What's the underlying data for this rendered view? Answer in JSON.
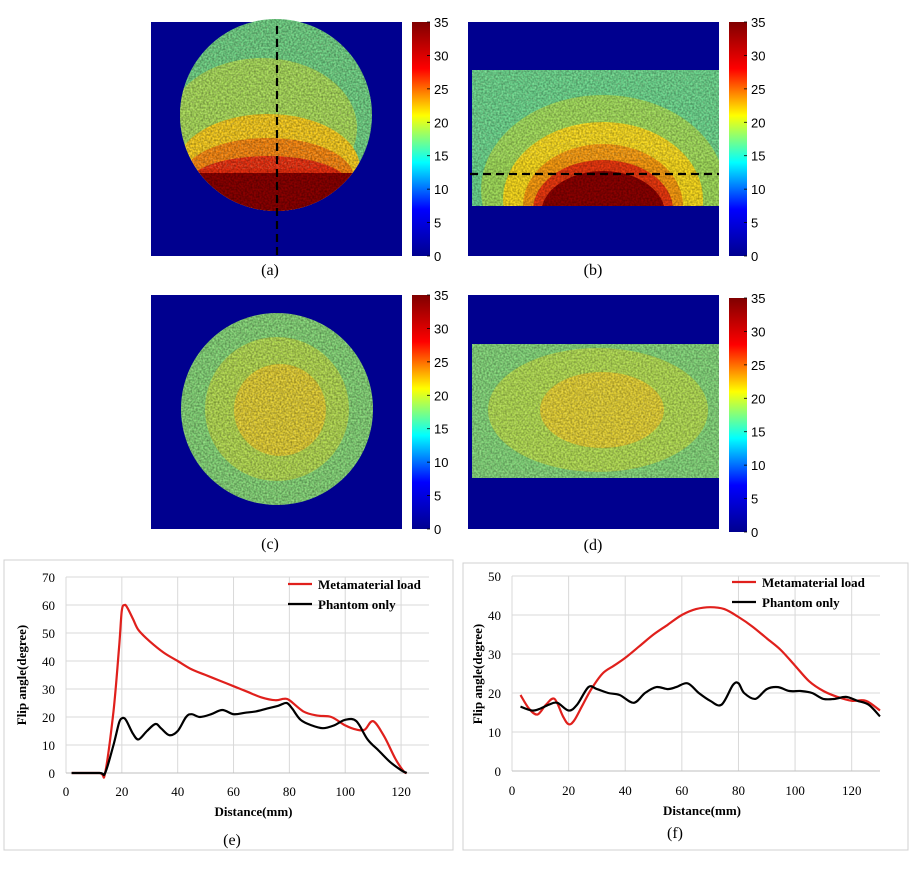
{
  "colors": {
    "jet": [
      "#00008f",
      "#0000ff",
      "#00ffff",
      "#ffff00",
      "#ff0000",
      "#800000"
    ],
    "background": "#00008f",
    "metamaterial": "#e0201c",
    "phantom": "#000000",
    "grid": "#d9d9d9"
  },
  "maps": [
    {
      "id": "a",
      "label": "(a)",
      "shape": "circle",
      "pattern": "bottom-hot",
      "dashed": "vertical",
      "colorbar": {
        "min": 0,
        "max": 35,
        "ticks": [
          "35",
          "30",
          "25",
          "20",
          "15",
          "10",
          "5",
          "0"
        ]
      }
    },
    {
      "id": "b",
      "label": "(b)",
      "shape": "rectangle",
      "pattern": "bottom-hot",
      "dashed": "horizontal",
      "colorbar": {
        "min": 0,
        "max": 35,
        "ticks": [
          "35",
          "30",
          "25",
          "20",
          "15",
          "10",
          "5",
          "0"
        ]
      }
    },
    {
      "id": "c",
      "label": "(c)",
      "shape": "circle",
      "pattern": "uniform",
      "dashed": "none",
      "colorbar": {
        "min": 0,
        "max": 35,
        "ticks": [
          "35",
          "30",
          "25",
          "20",
          "15",
          "10",
          "5",
          "0"
        ]
      }
    },
    {
      "id": "d",
      "label": "(d)",
      "shape": "rectangle",
      "pattern": "uniform",
      "dashed": "none",
      "colorbar": {
        "min": 0,
        "max": 35,
        "ticks": [
          "35",
          "30",
          "25",
          "20",
          "15",
          "10",
          "5",
          "0"
        ]
      }
    }
  ],
  "chart_data": [
    {
      "id": "e",
      "type": "line",
      "label": "(e)",
      "xlabel": "Distance(mm)",
      "ylabel": "Flip angle(degree)",
      "xlim": [
        0,
        130
      ],
      "ylim": [
        0,
        70
      ],
      "xticks": [
        0,
        20,
        40,
        60,
        80,
        100,
        120
      ],
      "yticks": [
        0,
        10,
        20,
        30,
        40,
        50,
        60,
        70
      ],
      "legend_position": "top-right",
      "series": [
        {
          "name": "Metamaterial load",
          "color": "#e0201c",
          "x": [
            2,
            12,
            14,
            17,
            19,
            20,
            21,
            22,
            24,
            26,
            30,
            35,
            40,
            45,
            50,
            55,
            60,
            65,
            70,
            75,
            78,
            80,
            85,
            90,
            95,
            100,
            104,
            107,
            110,
            114,
            118,
            121,
            122
          ],
          "y": [
            0,
            0,
            0,
            22,
            45,
            58,
            60,
            59,
            55,
            51,
            47,
            43,
            40,
            37,
            35,
            33,
            31,
            29,
            27,
            26,
            26.5,
            26,
            22,
            20.5,
            20,
            17,
            15.5,
            15.5,
            18.5,
            13,
            5,
            0.5,
            0
          ]
        },
        {
          "name": "Phantom only",
          "color": "#000000",
          "x": [
            2,
            12,
            14,
            17,
            19,
            20,
            21,
            22,
            24,
            26,
            29,
            32,
            34,
            37,
            40,
            43,
            45,
            48,
            52,
            56,
            60,
            64,
            68,
            72,
            76,
            79,
            81,
            84,
            88,
            92,
            96,
            100,
            104,
            108,
            112,
            116,
            120,
            122
          ],
          "y": [
            0,
            0,
            0,
            10,
            18,
            19.5,
            19.5,
            18,
            14,
            12,
            15,
            17.5,
            16,
            13.5,
            15,
            20,
            21,
            20,
            21,
            22.5,
            21,
            21.5,
            22,
            23,
            24,
            25,
            23,
            19,
            17,
            16,
            17,
            19,
            18.5,
            12,
            8,
            4,
            1,
            0
          ]
        }
      ]
    },
    {
      "id": "f",
      "type": "line",
      "label": "(f)",
      "xlabel": "Distance(mm)",
      "ylabel": "Flip angle(degree)",
      "xlim": [
        0,
        130
      ],
      "ylim": [
        0,
        50
      ],
      "xticks": [
        0,
        20,
        40,
        60,
        80,
        100,
        120
      ],
      "yticks": [
        0,
        10,
        20,
        30,
        40,
        50
      ],
      "legend_position": "top-right",
      "series": [
        {
          "name": "Metamaterial load",
          "color": "#e0201c",
          "x": [
            3,
            6,
            9,
            12,
            15,
            18,
            20,
            22,
            25,
            28,
            32,
            36,
            40,
            45,
            50,
            55,
            60,
            65,
            70,
            75,
            80,
            85,
            90,
            95,
            100,
            105,
            110,
            115,
            120,
            125,
            130
          ],
          "y": [
            19.5,
            16,
            14.5,
            17,
            18.5,
            14,
            12,
            13,
            17,
            21,
            25,
            27,
            29,
            32,
            35,
            37.5,
            40,
            41.5,
            42,
            41.5,
            39.5,
            37,
            34,
            31,
            27,
            23,
            20.5,
            19,
            18,
            18,
            15.5
          ]
        },
        {
          "name": "Phantom only",
          "color": "#000000",
          "x": [
            3,
            7,
            10,
            13,
            16,
            20,
            23,
            27,
            30,
            34,
            38,
            43,
            47,
            51,
            55,
            58,
            62,
            66,
            70,
            74,
            78,
            80,
            82,
            86,
            90,
            94,
            98,
            102,
            106,
            110,
            114,
            118,
            122,
            126,
            130
          ],
          "y": [
            16.5,
            15.5,
            16,
            17,
            17.5,
            15.5,
            17,
            21.5,
            21,
            20,
            19.5,
            17.5,
            20,
            21.5,
            21,
            21.5,
            22.5,
            20,
            18,
            17,
            22,
            22.5,
            20,
            18.5,
            21,
            21.5,
            20.5,
            20.5,
            20,
            18.5,
            18.5,
            19,
            18,
            17,
            14
          ]
        }
      ]
    }
  ]
}
